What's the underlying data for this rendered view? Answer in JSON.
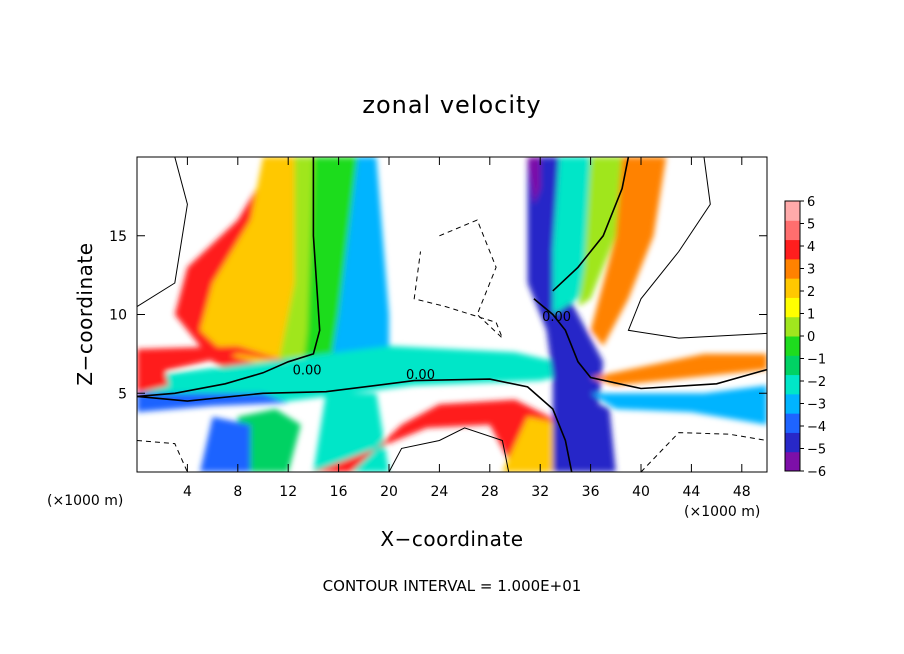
{
  "chart_data": {
    "type": "heatmap",
    "title": "zonal velocity",
    "xlabel": "X−coordinate",
    "ylabel": "Z−coordinate",
    "x_unit_left": "(×1000 m)",
    "x_unit_right": "(×1000 m)",
    "xlim": [
      0,
      50
    ],
    "ylim": [
      0,
      20
    ],
    "x_ticks": [
      4,
      8,
      12,
      16,
      20,
      24,
      28,
      32,
      36,
      40,
      44,
      48
    ],
    "y_ticks": [
      5,
      10,
      15
    ],
    "contour_interval_text": "CONTOUR INTERVAL = 1.000E+01",
    "contour_labels": [
      {
        "text": "0.00",
        "x": 13.5,
        "z": 6.2
      },
      {
        "text": "0.00",
        "x": 22.5,
        "z": 5.9
      },
      {
        "text": "0.00",
        "x": 33.3,
        "z": 9.6
      }
    ],
    "colorbar": {
      "min": -6,
      "max": 6,
      "ticks": [
        "6",
        "5",
        "4",
        "3",
        "2",
        "1",
        "0",
        "−1",
        "−2",
        "−3",
        "−4",
        "−5",
        "−6"
      ],
      "colors": [
        "#7d0fa8",
        "#2828c8",
        "#1e64ff",
        "#00b4ff",
        "#00e6c8",
        "#00d264",
        "#1edc1e",
        "#a0e61e",
        "#ffff00",
        "#ffc800",
        "#ff8200",
        "#ff1e1e",
        "#ff6e6e",
        "#ffaaaa"
      ]
    },
    "grid": false,
    "legend": "right"
  }
}
